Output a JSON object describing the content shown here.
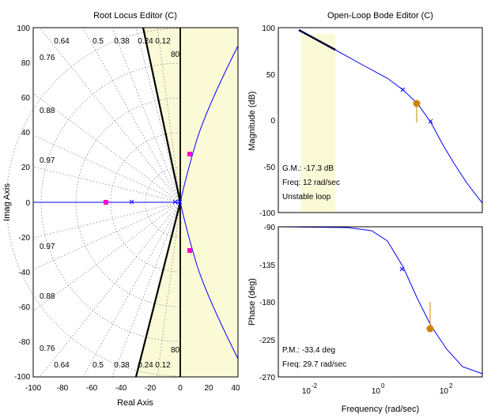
{
  "root_locus": {
    "title": "Root Locus Editor (C)",
    "xlabel": "Real Axis",
    "ylabel": "Imag Axis",
    "xticks": [
      "-100",
      "-80",
      "-60",
      "-40",
      "-20",
      "0",
      "20",
      "40"
    ],
    "yticks": [
      "100",
      "80",
      "60",
      "40",
      "20",
      "0",
      "-20",
      "-40",
      "-60",
      "-80",
      "-100"
    ],
    "damping_top": [
      "0.64",
      "0.5",
      "0.38",
      "0.24",
      "0.12"
    ],
    "damping_left_top": [
      "0.76",
      "0.88",
      "0.97"
    ],
    "damping_left_bottom": [
      "0.97",
      "0.88",
      "0.76"
    ],
    "damping_bottom": [
      "0.64",
      "0.5",
      "0.38",
      "0.24",
      "0.12"
    ],
    "freq_labels_top": [
      "80"
    ],
    "freq_labels_bottom": [
      "80"
    ],
    "shaded_color": "#fbfad7",
    "locus_color": "#0000ff",
    "pole_marker_color": "#ff00cc"
  },
  "bode": {
    "title": "Open-Loop Bode Editor (C)",
    "mag_ylabel": "Magnitude (dB)",
    "phase_ylabel": "Phase (deg)",
    "xlabel": "Frequency (rad/sec)",
    "mag_yticks": [
      "100",
      "50",
      "0",
      "-50",
      "-100"
    ],
    "phase_yticks": [
      "-90",
      "-135",
      "-180",
      "-225",
      "-270"
    ],
    "xticks": [
      {
        "base": "10",
        "exp": "-2"
      },
      {
        "base": "10",
        "exp": "0"
      },
      {
        "base": "10",
        "exp": "2"
      }
    ],
    "gm_text": "G.M.: -17.3 dB",
    "gm_freq": "Freq: 12 rad/sec",
    "loop_status": "Unstable loop",
    "pm_text": "P.M.: -33.4 deg",
    "pm_freq": "Freq: 29.7 rad/sec",
    "curve_color": "#0000ff",
    "marker_color": "#cc8400"
  }
}
